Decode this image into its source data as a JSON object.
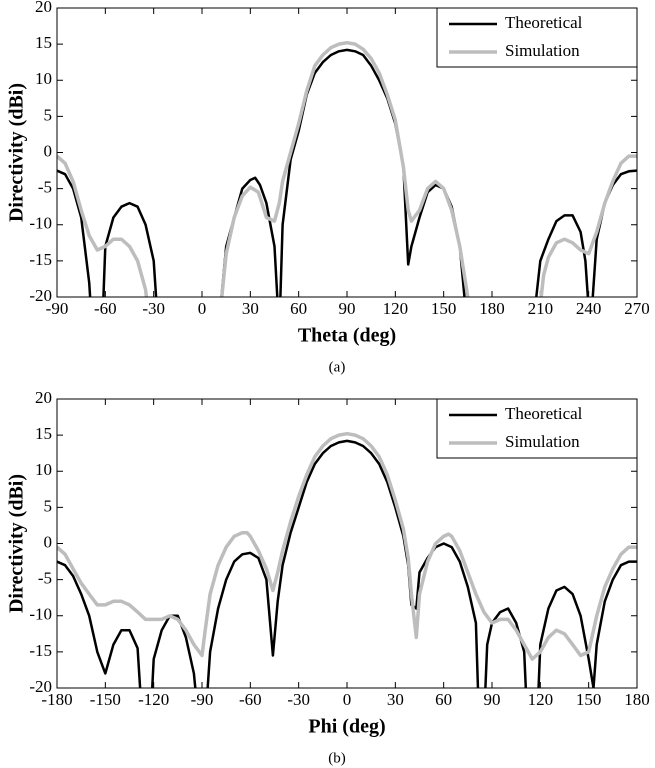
{
  "chart_data": [
    {
      "type": "line",
      "xlabel": "Theta (deg)",
      "ylabel": "Directivity (dBi)",
      "caption": "(a)",
      "xlim": [
        -90,
        270
      ],
      "xticks": [
        -90,
        -60,
        -30,
        0,
        30,
        60,
        90,
        120,
        150,
        180,
        210,
        240,
        270
      ],
      "ylim": [
        -20,
        20
      ],
      "yticks": [
        -20,
        -15,
        -10,
        -5,
        0,
        5,
        10,
        15,
        20
      ],
      "legend": "upper right",
      "series": [
        {
          "name": "Theoretical",
          "color": "#000000",
          "x": [
            -90,
            -85,
            -80,
            -75,
            -70,
            -68,
            -62,
            -60,
            -55,
            -50,
            -45,
            -40,
            -35,
            -30,
            -27,
            10,
            15,
            20,
            25,
            30,
            33,
            36,
            40,
            45,
            48,
            50,
            55,
            60,
            65,
            70,
            75,
            80,
            85,
            90,
            95,
            100,
            105,
            110,
            115,
            120,
            125,
            128,
            130,
            135,
            140,
            145,
            150,
            155,
            160,
            165,
            205,
            210,
            215,
            220,
            225,
            230,
            235,
            238,
            241,
            245,
            250,
            255,
            260,
            265,
            270
          ],
          "values": [
            -2.5,
            -3,
            -5,
            -9,
            -18,
            -25,
            -25,
            -13,
            -9,
            -7.5,
            -7,
            -7.5,
            -10,
            -15,
            -25,
            -25,
            -13,
            -9,
            -5,
            -3.8,
            -3.5,
            -4.5,
            -7,
            -13,
            -25,
            -10,
            -1,
            3,
            8,
            11,
            12.5,
            13.5,
            14,
            14.2,
            14,
            13.5,
            12,
            10,
            7.5,
            4,
            -2,
            -15.5,
            -13,
            -9,
            -5.5,
            -4.5,
            -5,
            -7.5,
            -13,
            -25,
            -25,
            -15,
            -12,
            -9.5,
            -8.7,
            -8.7,
            -11,
            -15,
            -25,
            -12,
            -7,
            -4.5,
            -3,
            -2.6,
            -2.5
          ]
        },
        {
          "name": "Simulation",
          "color": "#bdbdbd",
          "x": [
            -90,
            -85,
            -80,
            -75,
            -70,
            -65,
            -60,
            -55,
            -50,
            -45,
            -40,
            -35,
            -32,
            10,
            15,
            20,
            25,
            30,
            35,
            40,
            45,
            48,
            50,
            55,
            60,
            65,
            70,
            75,
            80,
            85,
            90,
            95,
            100,
            105,
            110,
            115,
            120,
            125,
            128,
            130,
            135,
            140,
            145,
            150,
            155,
            160,
            165,
            167,
            208,
            212,
            215,
            220,
            225,
            230,
            235,
            240,
            245,
            250,
            255,
            260,
            265,
            270
          ],
          "values": [
            -0.5,
            -1.5,
            -4,
            -8,
            -11.5,
            -13.5,
            -13,
            -12,
            -12,
            -13,
            -15,
            -19,
            -25,
            -25,
            -14,
            -9,
            -6,
            -4.8,
            -5.5,
            -9,
            -9.5,
            -7,
            -4,
            0,
            4,
            8.5,
            12,
            13.5,
            14.5,
            15,
            15.2,
            15,
            14.3,
            13,
            11,
            8,
            4.5,
            -2,
            -8,
            -9.5,
            -8,
            -5,
            -4,
            -5,
            -8,
            -13,
            -20,
            -25,
            -25,
            -17,
            -14.5,
            -12.5,
            -12,
            -12.5,
            -13.5,
            -14,
            -11,
            -7,
            -4,
            -1.5,
            -0.5,
            -0.5
          ]
        }
      ]
    },
    {
      "type": "line",
      "xlabel": "Phi (deg)",
      "ylabel": "Directivity (dBi)",
      "caption": "(b)",
      "xlim": [
        -180,
        180
      ],
      "xticks": [
        -180,
        -150,
        -120,
        -90,
        -60,
        -30,
        0,
        30,
        60,
        90,
        120,
        150,
        180
      ],
      "ylim": [
        -20,
        20
      ],
      "yticks": [
        -20,
        -15,
        -10,
        -5,
        0,
        5,
        10,
        15,
        20
      ],
      "legend": "upper right",
      "series": [
        {
          "name": "Theoretical",
          "color": "#000000",
          "x": [
            -180,
            -175,
            -170,
            -165,
            -160,
            -155,
            -150,
            -145,
            -140,
            -135,
            -130,
            -127,
            -122,
            -120,
            -115,
            -110,
            -105,
            -100,
            -95,
            -92,
            -88,
            -85,
            -80,
            -75,
            -70,
            -65,
            -60,
            -55,
            -50,
            -46,
            -43,
            -40,
            -35,
            -30,
            -25,
            -20,
            -15,
            -10,
            -5,
            0,
            5,
            10,
            15,
            20,
            25,
            30,
            35,
            38,
            40,
            43,
            45,
            50,
            55,
            60,
            65,
            70,
            75,
            80,
            82,
            85,
            87,
            90,
            95,
            100,
            105,
            110,
            112,
            118,
            120,
            125,
            130,
            135,
            140,
            145,
            150,
            153,
            155,
            160,
            165,
            170,
            175,
            180
          ],
          "values": [
            -2.5,
            -3,
            -4.5,
            -7,
            -10,
            -15,
            -18,
            -14,
            -12,
            -12,
            -14.5,
            -25,
            -25,
            -16,
            -12,
            -10,
            -10,
            -13,
            -18,
            -25,
            -25,
            -15,
            -9,
            -5,
            -2.5,
            -1.5,
            -1.3,
            -2,
            -5,
            -15.5,
            -8,
            -3,
            1.5,
            5,
            8.5,
            11,
            12.5,
            13.5,
            14,
            14.2,
            14,
            13.5,
            12.5,
            11,
            8.5,
            5,
            1,
            -3,
            -8.5,
            -9,
            -4,
            -2,
            -0.5,
            0,
            -0.5,
            -2.5,
            -6,
            -11,
            -25,
            -25,
            -14,
            -11,
            -9.5,
            -9,
            -11,
            -15,
            -25,
            -25,
            -14,
            -9,
            -6.5,
            -6,
            -7,
            -10,
            -16,
            -20,
            -14,
            -8,
            -5,
            -3,
            -2.5,
            -2.5
          ]
        },
        {
          "name": "Simulation",
          "color": "#bdbdbd",
          "x": [
            -180,
            -175,
            -170,
            -165,
            -160,
            -155,
            -150,
            -145,
            -140,
            -135,
            -130,
            -125,
            -120,
            -115,
            -110,
            -105,
            -100,
            -95,
            -90,
            -88,
            -85,
            -80,
            -75,
            -70,
            -65,
            -62,
            -60,
            -55,
            -50,
            -46,
            -43,
            -40,
            -35,
            -30,
            -25,
            -20,
            -15,
            -10,
            -5,
            0,
            5,
            10,
            15,
            20,
            25,
            30,
            35,
            38,
            40,
            43,
            45,
            50,
            55,
            60,
            63,
            65,
            70,
            75,
            80,
            85,
            90,
            95,
            100,
            105,
            110,
            115,
            120,
            125,
            130,
            135,
            140,
            145,
            150,
            155,
            160,
            165,
            170,
            175,
            180
          ],
          "values": [
            -0.5,
            -1.5,
            -3.5,
            -5.5,
            -7,
            -8.5,
            -8.5,
            -8,
            -8,
            -8.5,
            -9.5,
            -10.5,
            -10.5,
            -10.5,
            -10,
            -10.5,
            -12,
            -14,
            -15.5,
            -12,
            -7,
            -3,
            -0.5,
            1,
            1.5,
            1.5,
            1,
            -1,
            -3.5,
            -6.5,
            -4,
            -1,
            3,
            6.5,
            9.5,
            12,
            13.5,
            14.5,
            15,
            15.2,
            15,
            14.5,
            13.5,
            12,
            9.5,
            6,
            2,
            -2,
            -7,
            -13,
            -7,
            -2.5,
            0,
            1,
            1.3,
            1,
            -1,
            -4,
            -7,
            -9.5,
            -11,
            -10.5,
            -10.5,
            -12,
            -14,
            -16,
            -15,
            -13,
            -12,
            -12.5,
            -14,
            -15.5,
            -15,
            -10,
            -6,
            -3.5,
            -1.5,
            -0.5,
            -0.5
          ]
        }
      ]
    }
  ]
}
